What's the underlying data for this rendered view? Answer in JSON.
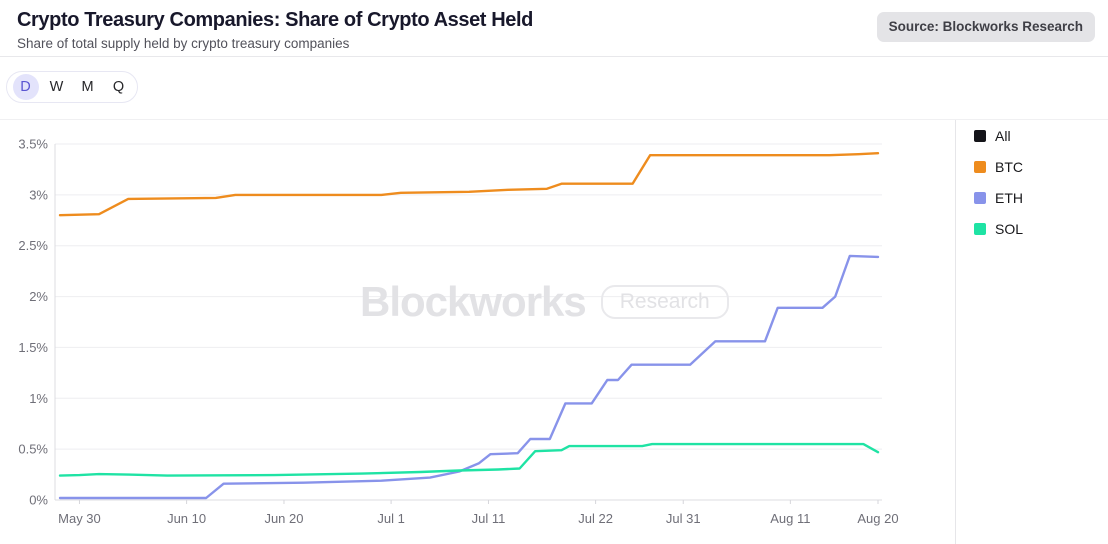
{
  "header": {
    "title": "Crypto Treasury Companies: Share of Crypto Asset Held",
    "subtitle": "Share of total supply held by crypto treasury companies",
    "source_label": "Source: Blockworks Research"
  },
  "toolbar": {
    "ranges": [
      {
        "label": "D",
        "selected": true
      },
      {
        "label": "W",
        "selected": false
      },
      {
        "label": "M",
        "selected": false
      },
      {
        "label": "Q",
        "selected": false
      }
    ]
  },
  "chart_data": {
    "type": "line",
    "title": "Crypto Treasury Companies: Share of Crypto Asset Held",
    "subtitle": "Share of total supply held by crypto treasury companies",
    "watermark": {
      "main": "Blockworks",
      "pill": "Research"
    },
    "grid": true,
    "legend_position": "right",
    "x_axis": {
      "unit": "date",
      "start_date": "May 28",
      "end_date": "Aug 20",
      "note": "point day values are days after May 28",
      "ticks": [
        {
          "label": "May 30",
          "day": 2
        },
        {
          "label": "Jun 10",
          "day": 13
        },
        {
          "label": "Jun 20",
          "day": 23
        },
        {
          "label": "Jul 1",
          "day": 34
        },
        {
          "label": "Jul 11",
          "day": 44
        },
        {
          "label": "Jul 22",
          "day": 55
        },
        {
          "label": "Jul 31",
          "day": 64
        },
        {
          "label": "Aug 11",
          "day": 75
        },
        {
          "label": "Aug 20",
          "day": 84
        }
      ]
    },
    "y_axis": {
      "unit": "%",
      "min": 0,
      "max": 3.5,
      "ticks": [
        {
          "label": "0%",
          "value": 0
        },
        {
          "label": "0.5%",
          "value": 0.5
        },
        {
          "label": "1%",
          "value": 1
        },
        {
          "label": "1.5%",
          "value": 1.5
        },
        {
          "label": "2%",
          "value": 2
        },
        {
          "label": "2.5%",
          "value": 2.5
        },
        {
          "label": "3%",
          "value": 3
        },
        {
          "label": "3.5%",
          "value": 3.5
        }
      ]
    },
    "series": [
      {
        "name": "All",
        "color": "#141419",
        "points": []
      },
      {
        "name": "BTC",
        "color": "#ee8c1e",
        "points": [
          [
            0,
            2.8
          ],
          [
            4,
            2.81
          ],
          [
            7,
            2.96
          ],
          [
            16,
            2.97
          ],
          [
            18,
            3.0
          ],
          [
            33,
            3.0
          ],
          [
            35,
            3.02
          ],
          [
            42,
            3.03
          ],
          [
            44,
            3.04
          ],
          [
            46,
            3.05
          ],
          [
            50,
            3.06
          ],
          [
            51.5,
            3.11
          ],
          [
            58.8,
            3.11
          ],
          [
            60.6,
            3.39
          ],
          [
            79,
            3.39
          ],
          [
            82,
            3.4
          ],
          [
            84,
            3.41
          ]
        ]
      },
      {
        "name": "ETH",
        "color": "#8893ea",
        "points": [
          [
            0,
            0.02
          ],
          [
            15,
            0.02
          ],
          [
            16.8,
            0.16
          ],
          [
            25,
            0.17
          ],
          [
            33,
            0.19
          ],
          [
            38,
            0.22
          ],
          [
            41,
            0.28
          ],
          [
            43,
            0.36
          ],
          [
            44.2,
            0.45
          ],
          [
            47,
            0.46
          ],
          [
            48.3,
            0.6
          ],
          [
            50.3,
            0.6
          ],
          [
            51.9,
            0.95
          ],
          [
            54.6,
            0.95
          ],
          [
            56.2,
            1.18
          ],
          [
            57.3,
            1.18
          ],
          [
            58.7,
            1.33
          ],
          [
            64.7,
            1.33
          ],
          [
            67.3,
            1.56
          ],
          [
            72.4,
            1.56
          ],
          [
            73.7,
            1.89
          ],
          [
            78.3,
            1.89
          ],
          [
            79.6,
            2.0
          ],
          [
            81.1,
            2.4
          ],
          [
            84,
            2.39
          ]
        ]
      },
      {
        "name": "SOL",
        "color": "#1fe3a4",
        "points": [
          [
            0,
            0.24
          ],
          [
            2,
            0.245
          ],
          [
            4,
            0.255
          ],
          [
            7,
            0.25
          ],
          [
            11,
            0.24
          ],
          [
            22,
            0.245
          ],
          [
            31,
            0.26
          ],
          [
            37,
            0.275
          ],
          [
            41,
            0.29
          ],
          [
            45,
            0.3
          ],
          [
            47.2,
            0.31
          ],
          [
            48.8,
            0.48
          ],
          [
            51.5,
            0.49
          ],
          [
            52.3,
            0.53
          ],
          [
            59.8,
            0.53
          ],
          [
            60.8,
            0.55
          ],
          [
            82.5,
            0.55
          ],
          [
            84,
            0.47
          ]
        ]
      }
    ]
  }
}
